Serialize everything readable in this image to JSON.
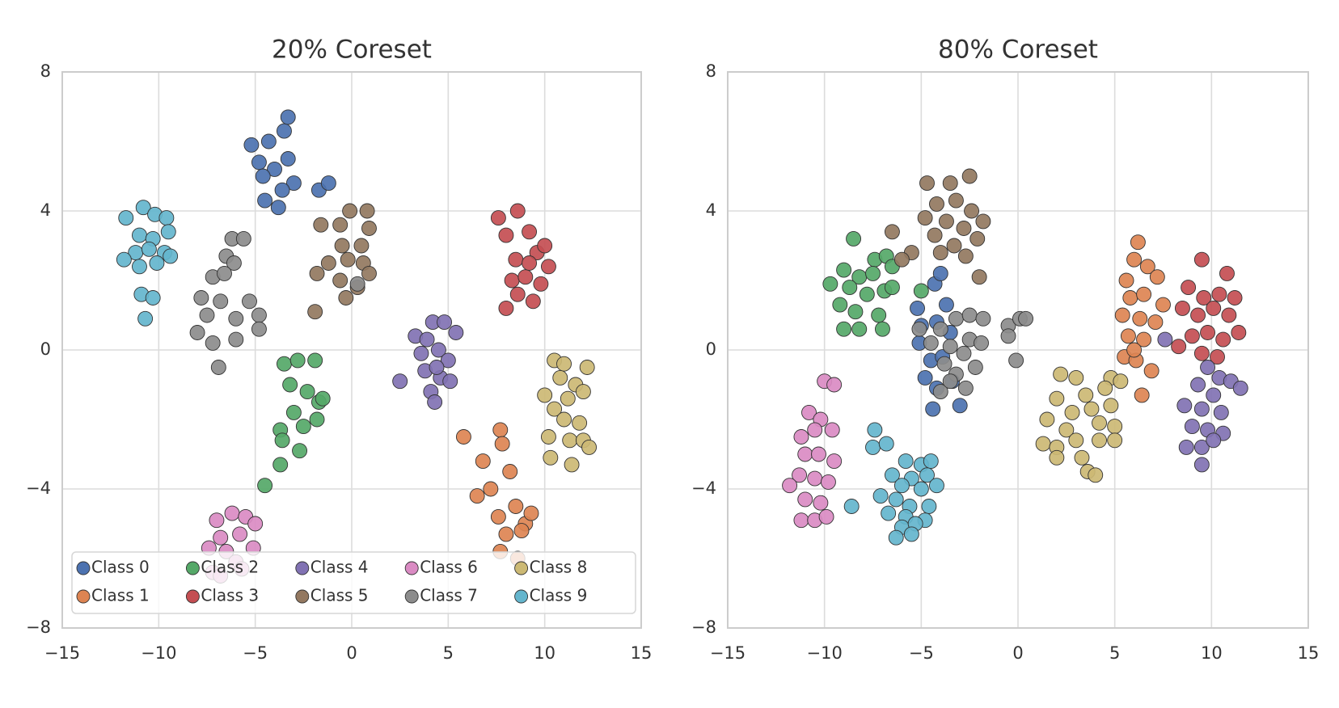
{
  "chart_data": [
    {
      "type": "scatter",
      "title": "20% Coreset",
      "xlim": [
        -15,
        15
      ],
      "ylim": [
        -8,
        8
      ],
      "xticks": [
        {
          "value": -15,
          "label": "−15"
        },
        {
          "value": -10,
          "label": "−10"
        },
        {
          "value": -5,
          "label": "−5"
        },
        0,
        5,
        10,
        15
      ],
      "yticks": [
        {
          "value": -8,
          "label": "−8"
        },
        {
          "value": -4,
          "label": "−4"
        },
        0,
        4,
        8
      ],
      "grid": true,
      "legend": "lower left",
      "series": [
        {
          "name": "Class 0",
          "color": "#4c72b0",
          "x": [
            -5.2,
            -4.8,
            -4.5,
            -4.3,
            -4.0,
            -3.8,
            -3.5,
            -3.3,
            -3.0,
            -3.3,
            -4.6,
            -3.6,
            -1.7,
            -1.2
          ],
          "y": [
            5.9,
            5.4,
            4.3,
            6.0,
            5.2,
            4.1,
            6.3,
            5.5,
            4.8,
            6.7,
            5.0,
            4.6,
            4.6,
            4.8
          ]
        },
        {
          "name": "Class 1",
          "color": "#dd8452",
          "x": [
            5.8,
            7.7,
            7.8,
            6.8,
            8.2,
            7.2,
            6.5,
            7.6,
            8.5,
            9.0,
            8.0,
            9.3,
            7.7,
            8.6,
            8.8
          ],
          "y": [
            -2.5,
            -2.3,
            -2.7,
            -3.2,
            -3.5,
            -4.0,
            -4.2,
            -4.8,
            -4.5,
            -5.0,
            -5.3,
            -4.7,
            -5.8,
            -6.0,
            -5.2
          ]
        },
        {
          "name": "Class 2",
          "color": "#55a868",
          "x": [
            -3.5,
            -2.8,
            -1.9,
            -3.2,
            -2.3,
            -1.7,
            -3.0,
            -2.5,
            -1.8,
            -3.7,
            -3.6,
            -2.7,
            -3.7,
            -4.5,
            -1.5
          ],
          "y": [
            -0.4,
            -0.3,
            -0.3,
            -1.0,
            -1.2,
            -1.5,
            -1.8,
            -2.2,
            -2.0,
            -2.3,
            -2.6,
            -2.9,
            -3.3,
            -3.9,
            -1.4
          ]
        },
        {
          "name": "Class 3",
          "color": "#c44e52",
          "x": [
            7.6,
            8.6,
            8.0,
            9.2,
            8.5,
            9.6,
            10.2,
            8.3,
            9.0,
            9.8,
            8.6,
            9.4,
            8.0,
            10.0,
            9.2
          ],
          "y": [
            3.8,
            4.0,
            3.3,
            3.4,
            2.6,
            2.8,
            2.4,
            2.0,
            2.1,
            1.9,
            1.6,
            1.4,
            1.2,
            3.0,
            2.5
          ]
        },
        {
          "name": "Class 4",
          "color": "#8172b3",
          "x": [
            2.5,
            3.3,
            4.2,
            4.8,
            5.4,
            3.6,
            4.5,
            5.0,
            3.8,
            4.6,
            4.1,
            4.3,
            5.1,
            3.9,
            4.4
          ],
          "y": [
            -0.9,
            0.4,
            0.8,
            0.8,
            0.5,
            -0.1,
            0.0,
            -0.3,
            -0.6,
            -0.8,
            -1.2,
            -1.5,
            -0.9,
            0.3,
            -0.5
          ]
        },
        {
          "name": "Class 5",
          "color": "#937860",
          "x": [
            -1.6,
            -0.6,
            -0.1,
            0.8,
            0.9,
            -0.5,
            0.5,
            -1.2,
            -0.2,
            0.6,
            -1.8,
            -0.6,
            0.9,
            -0.3,
            -1.9,
            0.3
          ],
          "y": [
            3.6,
            3.6,
            4.0,
            4.0,
            3.5,
            3.0,
            3.0,
            2.5,
            2.6,
            2.5,
            2.2,
            2.0,
            2.2,
            1.5,
            1.1,
            1.8
          ]
        },
        {
          "name": "Class 6",
          "color": "#da8bc3",
          "x": [
            -7.0,
            -6.2,
            -5.5,
            -5.0,
            -6.8,
            -5.8,
            -7.4,
            -6.5,
            -5.1,
            -6.0,
            -7.2,
            -6.8,
            -5.7
          ],
          "y": [
            -4.9,
            -4.7,
            -4.8,
            -5.0,
            -5.4,
            -5.3,
            -5.7,
            -5.8,
            -5.7,
            -6.1,
            -6.4,
            -6.5,
            -6.3
          ]
        },
        {
          "name": "Class 7",
          "color": "#8c8c8c",
          "x": [
            -6.2,
            -5.6,
            -6.5,
            -6.1,
            -7.2,
            -6.6,
            -7.8,
            -6.8,
            -5.3,
            -7.5,
            -6.0,
            -4.8,
            -8.0,
            -4.8,
            -7.2,
            -6.0,
            -6.9,
            0.3
          ],
          "y": [
            3.2,
            3.2,
            2.7,
            2.5,
            2.1,
            2.2,
            1.5,
            1.4,
            1.4,
            1.0,
            0.9,
            1.0,
            0.5,
            0.6,
            0.2,
            0.3,
            -0.5,
            1.9
          ]
        },
        {
          "name": "Class 8",
          "color": "#ccb974",
          "x": [
            10.5,
            11.0,
            10.8,
            11.6,
            12.2,
            10.0,
            11.2,
            12.0,
            10.5,
            11.0,
            11.8,
            10.2,
            11.3,
            12.0,
            12.3,
            10.3,
            11.4
          ],
          "y": [
            -0.3,
            -0.4,
            -0.8,
            -1.0,
            -0.5,
            -1.3,
            -1.4,
            -1.2,
            -1.7,
            -2.0,
            -2.1,
            -2.5,
            -2.6,
            -2.6,
            -2.8,
            -3.1,
            -3.3
          ]
        },
        {
          "name": "Class 9",
          "color": "#64b5cd",
          "x": [
            -11.7,
            -10.8,
            -10.2,
            -9.6,
            -11.0,
            -10.3,
            -9.5,
            -11.2,
            -10.5,
            -9.7,
            -11.8,
            -11.0,
            -10.1,
            -9.4,
            -10.9,
            -10.3,
            -10.7
          ],
          "y": [
            3.8,
            4.1,
            3.9,
            3.8,
            3.3,
            3.2,
            3.4,
            2.8,
            2.9,
            2.8,
            2.6,
            2.4,
            2.5,
            2.7,
            1.6,
            1.5,
            0.9
          ]
        }
      ]
    },
    {
      "type": "scatter",
      "title": "80% Coreset",
      "xlim": [
        -15,
        15
      ],
      "ylim": [
        -8,
        8
      ],
      "xticks": [
        {
          "value": -15,
          "label": "−15"
        },
        {
          "value": -10,
          "label": "−10"
        },
        {
          "value": -5,
          "label": "−5"
        },
        0,
        5,
        10,
        15
      ],
      "yticks": [
        {
          "value": -8,
          "label": "−8"
        },
        {
          "value": -4,
          "label": "−4"
        },
        0,
        4,
        8
      ],
      "grid": true,
      "series": [
        {
          "color": "#4c72b0",
          "x": [
            -5.2,
            -4.3,
            -4.0,
            -3.7,
            -5.0,
            -4.2,
            -3.5,
            -5.1,
            -4.5,
            -3.9,
            -4.8,
            -4.2,
            -4.4,
            -3.0,
            -3.4
          ],
          "y": [
            1.2,
            1.9,
            2.2,
            1.3,
            0.7,
            0.8,
            0.5,
            0.2,
            -0.3,
            -0.2,
            -0.8,
            -1.1,
            -1.7,
            -1.6,
            -0.9
          ]
        },
        {
          "color": "#dd8452",
          "x": [
            6.2,
            6.0,
            6.7,
            5.6,
            7.2,
            5.8,
            6.5,
            7.5,
            5.4,
            6.3,
            7.1,
            5.7,
            6.5,
            5.5,
            6.1,
            6.9,
            6.4,
            6.0
          ],
          "y": [
            3.1,
            2.6,
            2.4,
            2.0,
            2.1,
            1.5,
            1.6,
            1.3,
            1.0,
            0.9,
            0.8,
            0.4,
            0.3,
            -0.2,
            -0.3,
            -0.6,
            -1.3,
            0.0
          ]
        },
        {
          "color": "#55a868",
          "x": [
            -8.5,
            -7.4,
            -6.8,
            -9.0,
            -8.2,
            -7.5,
            -6.5,
            -9.7,
            -8.7,
            -7.8,
            -6.9,
            -9.2,
            -8.4,
            -7.2,
            -9.0,
            -8.2,
            -7.0,
            -5.0,
            -6.5
          ],
          "y": [
            3.2,
            2.6,
            2.7,
            2.3,
            2.1,
            2.2,
            2.4,
            1.9,
            1.8,
            1.6,
            1.7,
            1.3,
            1.1,
            1.0,
            0.6,
            0.6,
            0.6,
            1.7,
            1.8
          ]
        },
        {
          "color": "#c44e52",
          "x": [
            9.5,
            10.8,
            8.8,
            9.6,
            10.4,
            11.2,
            8.5,
            9.3,
            10.1,
            10.9,
            11.4,
            9.0,
            9.8,
            10.6,
            8.3,
            9.5,
            10.3
          ],
          "y": [
            2.6,
            2.2,
            1.8,
            1.5,
            1.6,
            1.5,
            1.2,
            1.0,
            1.2,
            1.0,
            0.5,
            0.4,
            0.5,
            0.3,
            0.1,
            -0.1,
            -0.2
          ]
        },
        {
          "color": "#8172b3",
          "x": [
            9.8,
            10.4,
            11.0,
            9.3,
            10.1,
            11.5,
            8.6,
            9.5,
            10.5,
            9.0,
            9.8,
            10.6,
            8.7,
            9.5,
            10.1,
            9.5,
            7.6
          ],
          "y": [
            -0.5,
            -0.8,
            -0.9,
            -1.0,
            -1.3,
            -1.1,
            -1.6,
            -1.7,
            -1.8,
            -2.2,
            -2.3,
            -2.4,
            -2.8,
            -2.8,
            -2.6,
            -3.3,
            0.3
          ]
        },
        {
          "color": "#937860",
          "x": [
            -4.7,
            -3.5,
            -2.5,
            -4.2,
            -3.2,
            -2.4,
            -4.8,
            -3.7,
            -2.8,
            -1.8,
            -4.3,
            -3.3,
            -2.1,
            -5.5,
            -4.0,
            -2.7,
            -6.0,
            -2.0,
            -6.5
          ],
          "y": [
            4.8,
            4.8,
            5.0,
            4.2,
            4.3,
            4.0,
            3.8,
            3.7,
            3.5,
            3.7,
            3.3,
            3.0,
            3.2,
            2.8,
            2.8,
            2.7,
            2.6,
            2.1,
            3.4
          ]
        },
        {
          "color": "#da8bc3",
          "x": [
            -10.0,
            -9.5,
            -10.8,
            -10.2,
            -11.2,
            -10.5,
            -9.6,
            -11.0,
            -10.3,
            -9.5,
            -11.3,
            -10.5,
            -9.8,
            -11.8,
            -11.0,
            -10.2,
            -11.2,
            -10.5,
            -9.9
          ],
          "y": [
            -0.9,
            -1.0,
            -1.8,
            -2.0,
            -2.5,
            -2.3,
            -2.3,
            -3.0,
            -3.0,
            -3.2,
            -3.6,
            -3.7,
            -3.8,
            -3.9,
            -4.3,
            -4.4,
            -4.9,
            -4.9,
            -4.8
          ]
        },
        {
          "color": "#8c8c8c",
          "x": [
            -5.1,
            -4.0,
            -3.2,
            -2.5,
            -1.8,
            -0.5,
            0.1,
            0.4,
            -4.5,
            -3.5,
            -2.5,
            -1.9,
            -0.5,
            -3.8,
            -2.8,
            -2.2,
            -3.2,
            -4.0,
            -2.7,
            -3.5,
            -0.1
          ],
          "y": [
            0.6,
            0.6,
            0.9,
            1.0,
            0.9,
            0.7,
            0.9,
            0.9,
            0.2,
            0.1,
            0.3,
            0.2,
            0.4,
            -0.4,
            -0.1,
            -0.5,
            -0.7,
            -1.2,
            -1.1,
            -0.9,
            -0.3
          ]
        },
        {
          "color": "#ccb974",
          "x": [
            2.2,
            3.0,
            4.8,
            5.3,
            2.0,
            3.5,
            4.5,
            2.8,
            3.8,
            4.8,
            1.5,
            2.5,
            4.2,
            5.0,
            1.3,
            2.0,
            3.0,
            4.2,
            5.0,
            2.0,
            3.3,
            3.6,
            4.0
          ],
          "y": [
            -0.7,
            -0.8,
            -0.8,
            -0.9,
            -1.4,
            -1.3,
            -1.1,
            -1.8,
            -1.7,
            -1.6,
            -2.0,
            -2.3,
            -2.1,
            -2.2,
            -2.7,
            -2.8,
            -2.6,
            -2.6,
            -2.6,
            -3.1,
            -3.1,
            -3.5,
            -3.6
          ]
        },
        {
          "color": "#64b5cd",
          "x": [
            -7.4,
            -7.5,
            -6.8,
            -5.8,
            -5.0,
            -4.5,
            -6.5,
            -5.5,
            -4.7,
            -6.0,
            -5.0,
            -4.2,
            -7.1,
            -6.3,
            -5.6,
            -4.6,
            -8.6,
            -6.7,
            -5.8,
            -4.8,
            -6.0,
            -5.3,
            -6.3,
            -5.5
          ],
          "y": [
            -2.3,
            -2.8,
            -2.7,
            -3.2,
            -3.3,
            -3.2,
            -3.6,
            -3.7,
            -3.6,
            -3.9,
            -4.0,
            -3.9,
            -4.2,
            -4.3,
            -4.5,
            -4.5,
            -4.5,
            -4.7,
            -4.8,
            -4.9,
            -5.1,
            -5.0,
            -5.4,
            -5.3
          ]
        }
      ]
    }
  ]
}
